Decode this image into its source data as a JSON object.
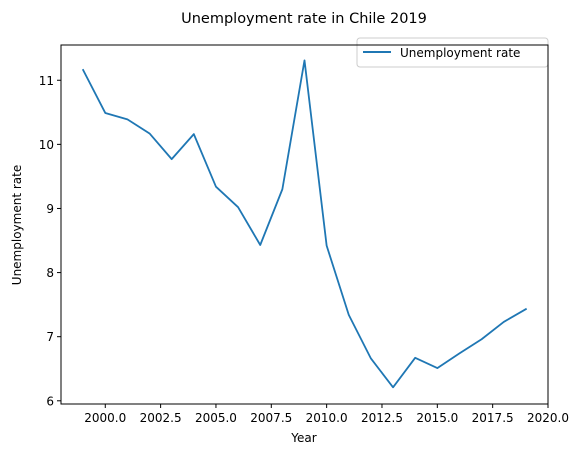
{
  "chart_data": {
    "type": "line",
    "title": "Unemployment rate in Chile 2019",
    "xlabel": "Year",
    "ylabel": "Unemployment rate",
    "xlim": [
      1998.0,
      2020.0
    ],
    "ylim": [
      5.95,
      11.55
    ],
    "xticks": [
      2000.0,
      2002.5,
      2005.0,
      2007.5,
      2010.0,
      2012.5,
      2015.0,
      2017.5,
      2020.0
    ],
    "xtick_labels": [
      "2000.0",
      "2002.5",
      "2005.0",
      "2007.5",
      "2010.0",
      "2012.5",
      "2015.0",
      "2017.5",
      "2020.0"
    ],
    "yticks": [
      6,
      7,
      8,
      9,
      10,
      11
    ],
    "ytick_labels": [
      "6",
      "7",
      "8",
      "9",
      "10",
      "11"
    ],
    "grid": false,
    "legend_position": "top-right",
    "series": [
      {
        "name": "Unemployment rate",
        "color": "#1f77b4",
        "x": [
          1999,
          2000,
          2001,
          2002,
          2003,
          2004,
          2005,
          2006,
          2007,
          2008,
          2009,
          2010,
          2011,
          2012,
          2013,
          2014,
          2015,
          2016,
          2017,
          2018,
          2019
        ],
        "y": [
          11.16,
          10.49,
          10.39,
          10.17,
          9.77,
          10.16,
          9.34,
          9.02,
          8.43,
          9.3,
          11.31,
          8.42,
          7.34,
          6.66,
          6.21,
          6.67,
          6.51,
          6.74,
          6.96,
          7.23,
          7.43
        ]
      }
    ]
  }
}
